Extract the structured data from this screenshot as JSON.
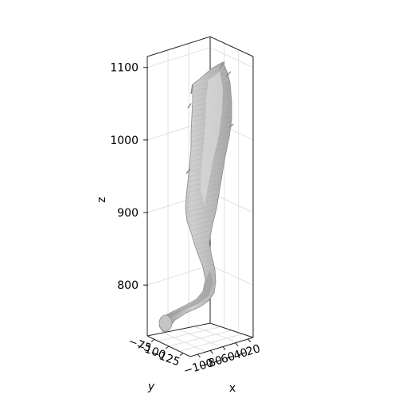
{
  "chart_data": {
    "type": "3d-surface",
    "title": "",
    "xlabel": "x",
    "ylabel": "y",
    "zlabel": "z",
    "z_ticks": [
      800,
      900,
      1000,
      1100
    ],
    "z_tick_labels": [
      "800",
      "900",
      "1000",
      "1100"
    ],
    "x_ticks": [
      -100,
      -80,
      -60,
      -40,
      -20
    ],
    "x_tick_labels": [
      "−100",
      "−80",
      "−60",
      "−40",
      "−20"
    ],
    "y_ticks": [
      -75,
      -100,
      -125
    ],
    "y_tick_labels": [
      "−75",
      "−100",
      "−125"
    ],
    "zlim": [
      730,
      1115
    ],
    "grid": true,
    "legend": "none",
    "colors": {
      "surface_fill": "#b4b4b4",
      "surface_highlight": "#d6d6d6",
      "surface_shadow": "#8a8a8a",
      "grid": "#e0e0e0",
      "frame": "#222222"
    }
  }
}
